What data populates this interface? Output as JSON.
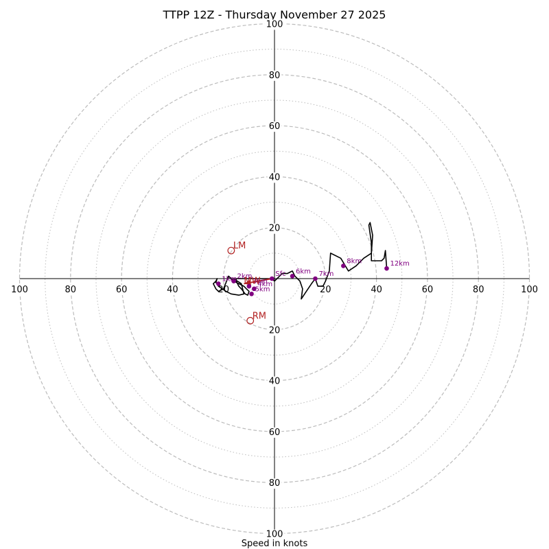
{
  "chart_data": {
    "type": "hodograph",
    "title": "TTPP 12Z - Thursday November 27 2025",
    "xlabel": "Speed in knots",
    "range": [
      -100,
      100
    ],
    "tick_labels": {
      "x_left": [
        "100",
        "80",
        "60",
        "40",
        "20"
      ],
      "x_right": [
        "20",
        "40",
        "60",
        "80",
        "100"
      ],
      "y_top": [
        "20",
        "40",
        "60",
        "80",
        "100"
      ],
      "y_bottom": [
        "20",
        "40",
        "60",
        "80",
        "100"
      ]
    },
    "rings_major": [
      20,
      40,
      60,
      80,
      100
    ],
    "rings_minor": [
      10,
      30,
      50,
      70,
      90
    ],
    "grid": true,
    "colors": {
      "trace": "#000000",
      "height_markers": "#800080",
      "motion_markers": "#b22222",
      "grid": "#bbbbbb"
    },
    "trace": [
      [
        -1,
        0
      ],
      [
        0,
        -1
      ],
      [
        2,
        1
      ],
      [
        3,
        2
      ],
      [
        5,
        2
      ],
      [
        7,
        3
      ],
      [
        8,
        1
      ],
      [
        10,
        -1
      ],
      [
        11,
        -4
      ],
      [
        10.5,
        -8
      ],
      [
        12.5,
        -5
      ],
      [
        14.5,
        -2
      ],
      [
        16,
        0
      ],
      [
        17,
        -3
      ],
      [
        19,
        -3
      ],
      [
        20,
        -1
      ],
      [
        21.5,
        3
      ],
      [
        22,
        10
      ],
      [
        26,
        8
      ],
      [
        29,
        3
      ],
      [
        32,
        5
      ],
      [
        35,
        8
      ],
      [
        38,
        10
      ],
      [
        38.5,
        17
      ],
      [
        37.5,
        22
      ],
      [
        37,
        21
      ],
      [
        38,
        14
      ],
      [
        38,
        7
      ],
      [
        42,
        7
      ],
      [
        43,
        8
      ],
      [
        43.5,
        11
      ],
      [
        44,
        4
      ],
      [
        43.6,
        3.8
      ]
    ],
    "trace_low": [
      [
        -1,
        0
      ],
      [
        -3,
        0
      ],
      [
        -6,
        0
      ],
      [
        -9,
        0
      ],
      [
        -12,
        0
      ],
      [
        -15,
        0
      ],
      [
        -15,
        -1
      ],
      [
        -14,
        -3
      ],
      [
        -13,
        -4
      ],
      [
        -11.5,
        -6
      ],
      [
        -10.5,
        -6.5
      ],
      [
        -10,
        -5
      ],
      [
        -11,
        -4
      ],
      [
        -12,
        -3
      ],
      [
        -14,
        -2
      ],
      [
        -16,
        -1
      ],
      [
        -17,
        0
      ],
      [
        -18,
        1
      ],
      [
        -20,
        -4
      ],
      [
        -22,
        -5
      ],
      [
        -23,
        -4
      ],
      [
        -24,
        -2
      ],
      [
        -23,
        -1
      ],
      [
        -22.5,
        0
      ],
      [
        -23,
        -1.5
      ],
      [
        -22,
        -3
      ],
      [
        -19,
        -5
      ],
      [
        -17,
        -6
      ],
      [
        -14,
        -6.5
      ],
      [
        -12,
        -6
      ],
      [
        -13,
        -2
      ],
      [
        -16,
        0
      ]
    ],
    "heights": [
      {
        "label": "Sfc",
        "u": -1,
        "v": 0
      },
      {
        "label": "1km",
        "u": -22,
        "v": -2
      },
      {
        "label": "2km",
        "u": -16,
        "v": -1
      },
      {
        "label": "3km",
        "u": -10,
        "v": -3
      },
      {
        "label": "4km",
        "u": -8,
        "v": -4
      },
      {
        "label": "5km",
        "u": -9,
        "v": -6
      },
      {
        "label": "6km",
        "u": 7,
        "v": 1
      },
      {
        "label": "7km",
        "u": 16,
        "v": 0
      },
      {
        "label": "8km",
        "u": 27,
        "v": 5
      },
      {
        "label": "12km",
        "u": 44,
        "v": 4
      }
    ],
    "storm_motions": [
      {
        "label": "LM",
        "u": -17,
        "v": 11
      },
      {
        "label": "RM",
        "u": -9.5,
        "v": -16.5
      },
      {
        "label": "MW",
        "u": -12,
        "v": -2
      }
    ],
    "arrow": {
      "from": [
        -1,
        0
      ],
      "to": [
        -12,
        -2
      ]
    }
  }
}
